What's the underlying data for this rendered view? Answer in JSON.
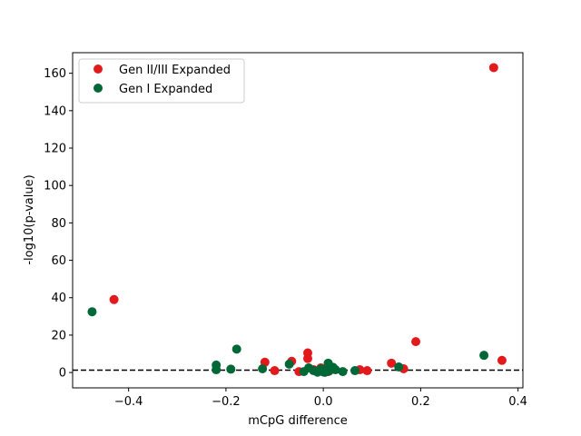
{
  "chart_data": {
    "type": "scatter",
    "xlabel": "mCpG difference",
    "ylabel": "-log10(p-value)",
    "xlim": [
      -0.515,
      0.41
    ],
    "ylim": [
      -8.2,
      171
    ],
    "xticks": [
      -0.4,
      -0.2,
      0.0,
      0.2,
      0.4
    ],
    "xtick_labels": [
      "−0.4",
      "−0.2",
      "0.0",
      "0.2",
      "0.4"
    ],
    "yticks": [
      0,
      20,
      40,
      60,
      80,
      100,
      120,
      140,
      160
    ],
    "ytick_labels": [
      "0",
      "20",
      "40",
      "60",
      "80",
      "100",
      "120",
      "140",
      "160"
    ],
    "threshold_y": 1.3,
    "grid": false,
    "legend_position": "upper-left",
    "series": [
      {
        "name": "Gen II/III Expanded",
        "color": "#e31a1c",
        "points": [
          [
            -0.43,
            39
          ],
          [
            0.35,
            163
          ],
          [
            0.19,
            16.5
          ],
          [
            0.14,
            5
          ],
          [
            0.165,
            2
          ],
          [
            0.367,
            6.5
          ],
          [
            -0.12,
            5.5
          ],
          [
            -0.1,
            1
          ],
          [
            -0.065,
            6
          ],
          [
            -0.032,
            10.5
          ],
          [
            -0.032,
            7.5
          ],
          [
            -0.05,
            0.5
          ],
          [
            -0.02,
            1.5
          ],
          [
            -0.005,
            2.5
          ],
          [
            0.075,
            1.5
          ],
          [
            0.09,
            1
          ],
          [
            0.01,
            0.5
          ],
          [
            0.02,
            2
          ]
        ]
      },
      {
        "name": "Gen I Expanded",
        "color": "#006837",
        "points": [
          [
            -0.475,
            32.5
          ],
          [
            -0.22,
            4
          ],
          [
            -0.22,
            1.5
          ],
          [
            -0.19,
            1.8
          ],
          [
            -0.178,
            12.5
          ],
          [
            -0.125,
            2
          ],
          [
            -0.07,
            4.5
          ],
          [
            -0.04,
            0.5
          ],
          [
            -0.03,
            2.5
          ],
          [
            -0.02,
            1
          ],
          [
            -0.01,
            0.5
          ],
          [
            -0.005,
            2
          ],
          [
            0.0,
            0.3
          ],
          [
            0.005,
            1.2
          ],
          [
            0.01,
            5
          ],
          [
            0.012,
            0.8
          ],
          [
            0.02,
            2.8
          ],
          [
            0.025,
            1.5
          ],
          [
            0.04,
            0.5
          ],
          [
            0.065,
            1
          ],
          [
            0.155,
            3
          ],
          [
            0.33,
            9.2
          ],
          [
            -0.012,
            0.2
          ],
          [
            0.003,
            0.1
          ]
        ]
      }
    ]
  }
}
